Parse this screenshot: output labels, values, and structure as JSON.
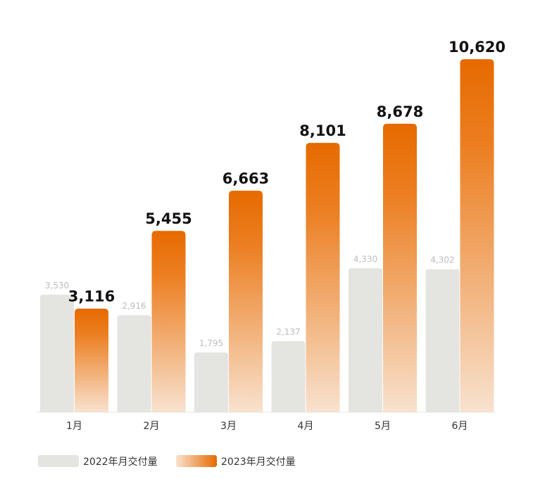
{
  "chart_data": {
    "type": "bar",
    "title": "",
    "xlabel": "",
    "ylabel": "",
    "ylim": [
      0,
      12400
    ],
    "grid": false,
    "legend_position": "bottom-left",
    "categories": [
      "1月",
      "2月",
      "3月",
      "4月",
      "5月",
      "6月"
    ],
    "series": [
      {
        "name": "2022年月交付量",
        "values": [
          3530,
          2916,
          1795,
          2137,
          4330,
          4302
        ],
        "labels": [
          "3,530",
          "2,916",
          "1,795",
          "2,137",
          "4,330",
          "4,302"
        ],
        "color": "#e4e4e1"
      },
      {
        "name": "2023年月交付量",
        "values": [
          3116,
          5455,
          6663,
          8101,
          8678,
          10620
        ],
        "labels": [
          "3,116",
          "5,455",
          "6,663",
          "8,101",
          "8,678",
          "10,620"
        ],
        "color": "#e66a00",
        "color_light": "#f8e2cf"
      }
    ],
    "colors": {
      "label_2022": "#bdbdbd",
      "label_2023": "#111111",
      "axis_line": "#e4e4e1",
      "tick_label": "#333333",
      "legend_text": "#333333"
    }
  }
}
